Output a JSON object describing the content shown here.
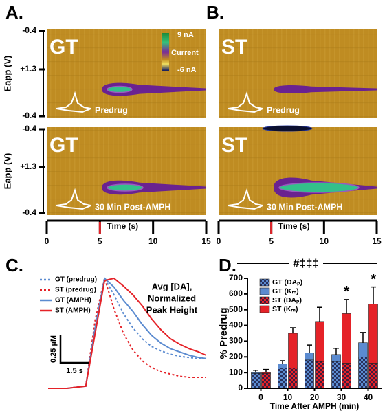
{
  "color_plots": {
    "panels": [
      {
        "label": "A.",
        "plots": [
          {
            "strain": "GT",
            "condition": "Predrug"
          },
          {
            "strain": "GT",
            "condition": "30 Min Post-AMPH"
          }
        ]
      },
      {
        "label": "B.",
        "plots": [
          {
            "strain": "ST",
            "condition": "Predrug"
          },
          {
            "strain": "ST",
            "condition": "30 Min Post-AMPH"
          }
        ]
      }
    ],
    "eapp_label": "Eapp (V)",
    "eapp_ticks": [
      "-0.4",
      "+1.3",
      "-0.4"
    ],
    "colorbar": {
      "max": "9 nA",
      "label": "Current",
      "min": "-6 nA"
    },
    "time_axis": {
      "label": "Time (s)",
      "xlim": [
        0,
        15
      ],
      "xticks": [
        0,
        5,
        10,
        15
      ],
      "stimulus": 5
    }
  },
  "chart_data": [
    {
      "type": "line",
      "panel_label": "C.",
      "annotation": [
        "Avg [DA],",
        "Normalized",
        "Peak Height"
      ],
      "scale_bar": {
        "y": {
          "value": 0.25,
          "label": "0.25 µM"
        },
        "x": {
          "value": 1.5,
          "label": "1.5 s"
        }
      },
      "x": [
        0,
        1,
        2,
        2.5,
        3,
        3.5,
        4,
        4.5,
        5,
        5.5,
        6,
        6.5,
        7,
        7.5,
        8,
        8.4
      ],
      "series": [
        {
          "name": "GT (predrug)",
          "color": "#5b8bd0",
          "style": "dotted",
          "values": [
            0,
            0,
            0.02,
            0.6,
            1.0,
            0.85,
            0.68,
            0.55,
            0.45,
            0.38,
            0.34,
            0.31,
            0.29,
            0.28,
            0.27,
            0.27
          ]
        },
        {
          "name": "ST (predrug)",
          "color": "#e52228",
          "style": "dotted",
          "values": [
            0,
            0,
            0.02,
            0.62,
            1.0,
            0.72,
            0.5,
            0.35,
            0.25,
            0.19,
            0.15,
            0.13,
            0.11,
            0.1,
            0.1,
            0.1
          ]
        },
        {
          "name": "GT (AMPH)",
          "color": "#5b8bd0",
          "style": "solid",
          "values": [
            0,
            0,
            0.02,
            0.55,
            1.0,
            0.92,
            0.8,
            0.7,
            0.58,
            0.48,
            0.41,
            0.36,
            0.33,
            0.3,
            0.28,
            0.27
          ]
        },
        {
          "name": "ST (AMPH)",
          "color": "#e52228",
          "style": "solid",
          "values": [
            0,
            0,
            0.02,
            0.5,
            0.98,
            1.0,
            0.93,
            0.85,
            0.75,
            0.63,
            0.53,
            0.45,
            0.4,
            0.36,
            0.33,
            0.3
          ]
        }
      ]
    },
    {
      "type": "bar",
      "panel_label": "D.",
      "significance": "#‡‡‡",
      "ylabel": "% Predrug",
      "xlabel": "Time After AMPH (min)",
      "categories": [
        "0",
        "10",
        "20",
        "30",
        "40"
      ],
      "ylim": [
        0,
        700
      ],
      "yticks": [
        0,
        100,
        200,
        300,
        400,
        500,
        600,
        700
      ],
      "series": [
        {
          "name": "GT (DAₚ)",
          "color": "#5b8bd0",
          "pattern": "checkered",
          "values": [
            95,
            130,
            180,
            170,
            200
          ]
        },
        {
          "name": "GT (Kₘ)",
          "color": "#5b8bd0",
          "values": [
            5,
            25,
            45,
            45,
            90
          ],
          "errors": [
            15,
            20,
            50,
            40,
            65
          ]
        },
        {
          "name": "ST (DAₚ)",
          "color": "#e52228",
          "pattern": "checkered",
          "values": [
            95,
            130,
            170,
            160,
            160
          ]
        },
        {
          "name": "ST (Kₘ)",
          "color": "#e52228",
          "values": [
            5,
            220,
            255,
            315,
            375
          ],
          "errors": [
            20,
            35,
            90,
            90,
            110
          ]
        }
      ],
      "stars": [
        {
          "text": "*",
          "category": "30"
        },
        {
          "text": "*",
          "category": "40"
        }
      ]
    }
  ]
}
